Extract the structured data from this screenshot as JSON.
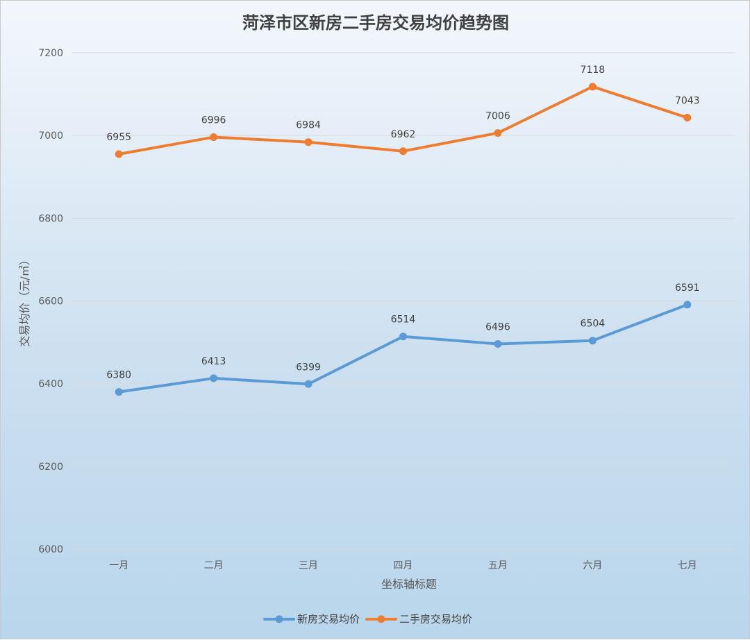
{
  "chart_data": {
    "type": "line",
    "title": "菏泽市区新房二手房交易均价趋势图",
    "xlabel": "坐标轴标题",
    "ylabel": "交易均价（元/㎡）",
    "categories": [
      "一月",
      "二月",
      "三月",
      "四月",
      "五月",
      "六月",
      "七月"
    ],
    "ylim": [
      6000,
      7200
    ],
    "yticks": [
      6000,
      6200,
      6400,
      6600,
      6800,
      7000,
      7200
    ],
    "grid": true,
    "legend_position": "bottom",
    "series": [
      {
        "name": "新房交易均价",
        "color": "#5b9bd5",
        "values": [
          6380,
          6413,
          6399,
          6514,
          6496,
          6504,
          6591
        ]
      },
      {
        "name": "二手房交易均价",
        "color": "#ed7d31",
        "values": [
          6955,
          6996,
          6984,
          6962,
          7006,
          7118,
          7043
        ]
      }
    ]
  }
}
